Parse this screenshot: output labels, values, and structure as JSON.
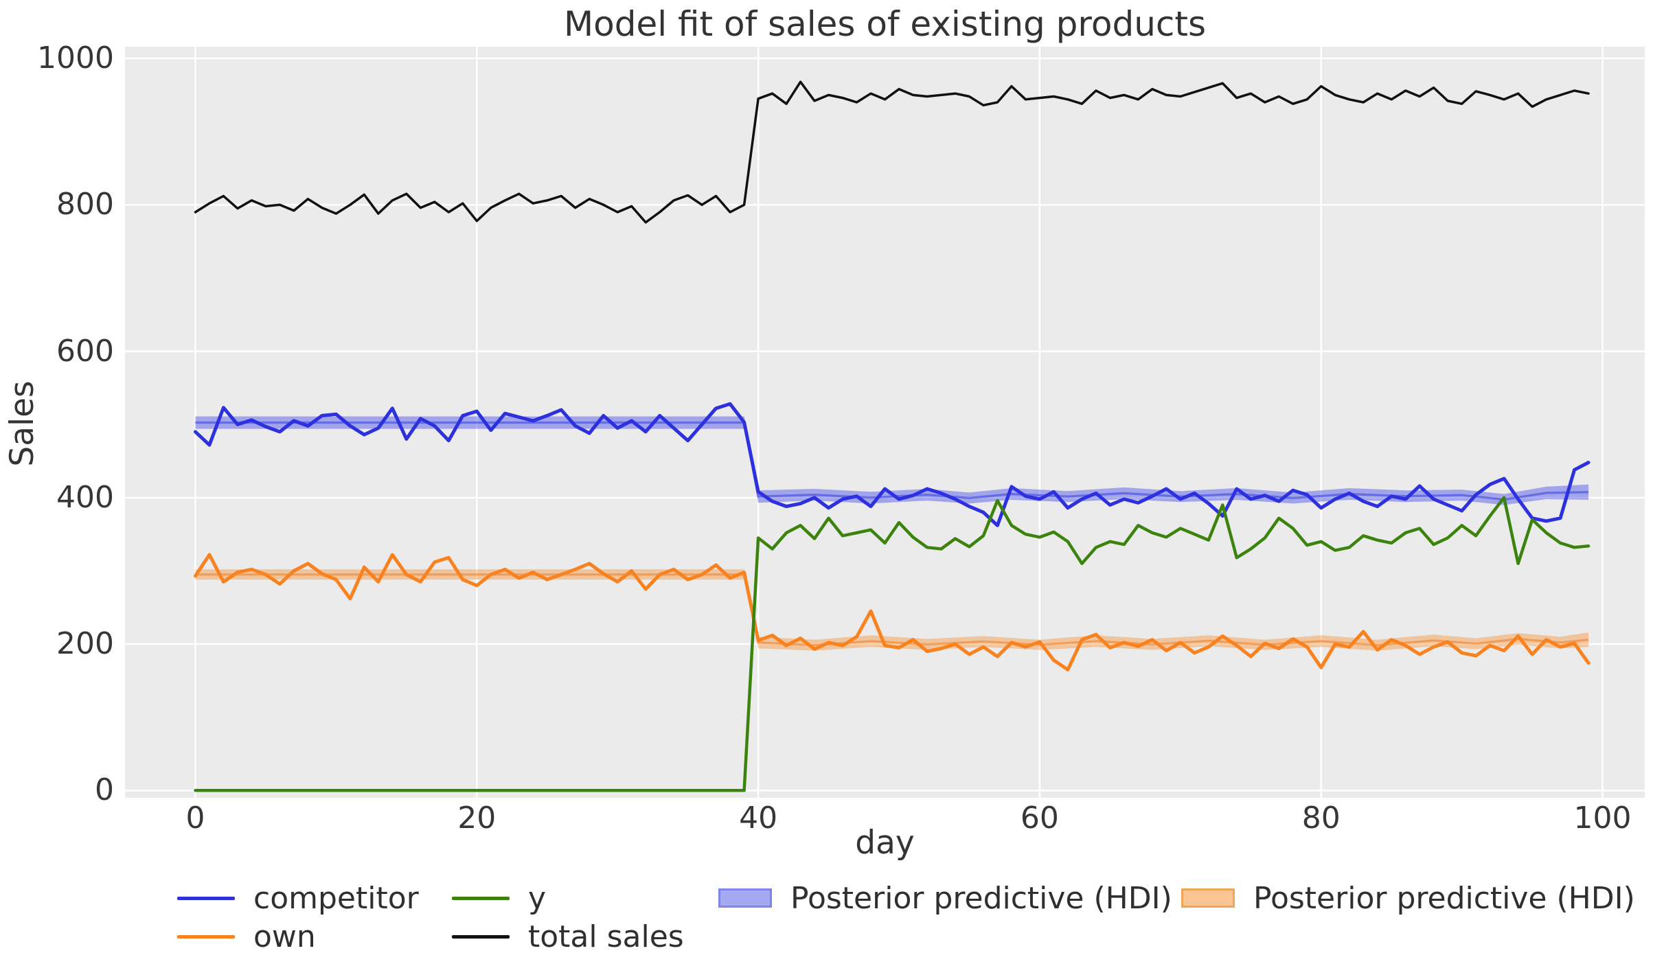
{
  "figure": {
    "title": "Model fit of sales of existing products",
    "figure_bg": "#ffffff",
    "plot_bg": "#ebebeb",
    "grid_color": "#ffffff",
    "text_color": "#333333"
  },
  "legend": {
    "items": [
      {
        "label": "competitor",
        "swatch": "line",
        "color": "#2c30dd"
      },
      {
        "label": "own",
        "swatch": "line",
        "color": "#f8821f"
      },
      {
        "label": "y",
        "swatch": "line",
        "color": "#3c830e"
      },
      {
        "label": "total sales",
        "swatch": "line",
        "color": "#111111"
      },
      {
        "label": "Posterior predictive (HDI)",
        "swatch": "patch",
        "color": "#a5a9f2",
        "border": "#7e84e9"
      },
      {
        "label": "Posterior predictive (HDI)",
        "swatch": "patch",
        "color": "#f9c693",
        "border": "#f1a558"
      }
    ]
  },
  "chart_data": {
    "type": "line",
    "title": "Model fit of sales of existing products",
    "xlabel": "day",
    "ylabel": "Sales",
    "xticks": [
      0,
      20,
      40,
      60,
      80,
      100
    ],
    "yticks": [
      0,
      200,
      400,
      600,
      800,
      1000
    ],
    "xlim": [
      -5,
      103
    ],
    "ylim": [
      -10,
      1016
    ],
    "grid": true,
    "legend_position": "bottom",
    "x_start": 0,
    "x_step": 1,
    "series": [
      {
        "name": "competitor",
        "color": "#2c30dd",
        "values": [
          490,
          472,
          523,
          500,
          506,
          497,
          490,
          505,
          498,
          512,
          514,
          498,
          486,
          495,
          522,
          480,
          508,
          498,
          478,
          512,
          518,
          492,
          515,
          510,
          505,
          512,
          520,
          498,
          488,
          512,
          495,
          505,
          490,
          512,
          495,
          478,
          500,
          522,
          528,
          503,
          408,
          395,
          388,
          392,
          400,
          386,
          398,
          402,
          388,
          412,
          398,
          403,
          412,
          406,
          398,
          388,
          380,
          362,
          415,
          402,
          398,
          408,
          386,
          398,
          406,
          390,
          398,
          393,
          402,
          412,
          398,
          406,
          392,
          375,
          412,
          398,
          403,
          395,
          410,
          404,
          386,
          398,
          406,
          395,
          388,
          402,
          398,
          416,
          398,
          390,
          382,
          404,
          418,
          426,
          398,
          372,
          368,
          372,
          438,
          448
        ]
      },
      {
        "name": "own",
        "color": "#f8821f",
        "values": [
          293,
          322,
          285,
          298,
          302,
          295,
          282,
          300,
          310,
          296,
          288,
          262,
          305,
          285,
          322,
          295,
          285,
          312,
          318,
          288,
          280,
          295,
          302,
          290,
          298,
          288,
          295,
          302,
          310,
          296,
          285,
          300,
          275,
          295,
          302,
          288,
          295,
          308,
          290,
          298,
          205,
          212,
          198,
          208,
          193,
          202,
          198,
          210,
          245,
          198,
          195,
          206,
          190,
          194,
          200,
          186,
          196,
          183,
          202,
          196,
          203,
          178,
          165,
          206,
          213,
          195,
          202,
          197,
          206,
          191,
          202,
          188,
          196,
          211,
          198,
          183,
          201,
          194,
          207,
          196,
          168,
          200,
          196,
          217,
          192,
          206,
          198,
          186,
          196,
          203,
          188,
          184,
          198,
          191,
          211,
          186,
          206,
          196,
          201,
          174
        ]
      },
      {
        "name": "y",
        "color": "#3c830e",
        "values": [
          0,
          0,
          0,
          0,
          0,
          0,
          0,
          0,
          0,
          0,
          0,
          0,
          0,
          0,
          0,
          0,
          0,
          0,
          0,
          0,
          0,
          0,
          0,
          0,
          0,
          0,
          0,
          0,
          0,
          0,
          0,
          0,
          0,
          0,
          0,
          0,
          0,
          0,
          0,
          0,
          345,
          330,
          352,
          362,
          344,
          372,
          348,
          352,
          356,
          338,
          366,
          346,
          332,
          330,
          344,
          333,
          348,
          396,
          362,
          350,
          346,
          353,
          340,
          310,
          332,
          340,
          336,
          362,
          352,
          346,
          358,
          350,
          342,
          390,
          318,
          330,
          345,
          372,
          358,
          335,
          340,
          328,
          332,
          348,
          342,
          338,
          352,
          358,
          336,
          345,
          362,
          348,
          375,
          400,
          310,
          370,
          352,
          338,
          332,
          334
        ]
      },
      {
        "name": "total sales",
        "color": "#111111",
        "values": [
          790,
          802,
          812,
          795,
          806,
          798,
          800,
          792,
          808,
          796,
          788,
          800,
          814,
          788,
          806,
          815,
          796,
          804,
          790,
          802,
          778,
          796,
          806,
          815,
          802,
          806,
          812,
          796,
          808,
          800,
          790,
          798,
          776,
          790,
          806,
          813,
          800,
          812,
          790,
          800,
          945,
          952,
          938,
          968,
          942,
          950,
          946,
          940,
          952,
          944,
          958,
          950,
          948,
          950,
          952,
          948,
          936,
          940,
          962,
          944,
          946,
          948,
          944,
          938,
          956,
          946,
          950,
          944,
          958,
          950,
          948,
          954,
          960,
          966,
          946,
          952,
          940,
          948,
          938,
          944,
          962,
          950,
          944,
          940,
          952,
          944,
          956,
          948,
          960,
          942,
          938,
          955,
          950,
          944,
          952,
          934,
          944,
          950,
          956,
          952
        ]
      }
    ],
    "bands": [
      {
        "name": "Posterior predictive (HDI)",
        "fill": "rgba(70, 78, 232, 0.45)",
        "mean_color": "rgba(55, 62, 218, 0.55)",
        "points": [
          [
            0,
            494,
            511
          ],
          [
            39,
            494,
            511
          ],
          [
            40,
            393,
            410
          ],
          [
            44,
            396,
            412
          ],
          [
            48,
            392,
            408
          ],
          [
            52,
            396,
            412
          ],
          [
            55,
            392,
            407
          ],
          [
            58,
            397,
            413
          ],
          [
            62,
            394,
            409
          ],
          [
            66,
            398,
            414
          ],
          [
            70,
            394,
            409
          ],
          [
            74,
            397,
            413
          ],
          [
            78,
            392,
            407
          ],
          [
            82,
            397,
            413
          ],
          [
            86,
            394,
            410
          ],
          [
            90,
            396,
            411
          ],
          [
            93,
            390,
            405
          ],
          [
            96,
            398,
            415
          ],
          [
            99,
            397,
            418
          ]
        ]
      },
      {
        "name": "Posterior predictive (HDI)",
        "fill": "rgba(248, 145, 50, 0.42)",
        "mean_color": "rgba(243, 130, 40, 0.60)",
        "points": [
          [
            0,
            288,
            302
          ],
          [
            39,
            288,
            302
          ],
          [
            40,
            194,
            210
          ],
          [
            44,
            191,
            206
          ],
          [
            48,
            196,
            212
          ],
          [
            52,
            192,
            207
          ],
          [
            56,
            196,
            211
          ],
          [
            60,
            192,
            206
          ],
          [
            64,
            196,
            212
          ],
          [
            68,
            192,
            207
          ],
          [
            72,
            197,
            212
          ],
          [
            76,
            192,
            206
          ],
          [
            80,
            196,
            212
          ],
          [
            84,
            191,
            206
          ],
          [
            88,
            197,
            213
          ],
          [
            91,
            193,
            208
          ],
          [
            94,
            199,
            215
          ],
          [
            97,
            194,
            210
          ],
          [
            99,
            196,
            216
          ]
        ]
      }
    ]
  }
}
